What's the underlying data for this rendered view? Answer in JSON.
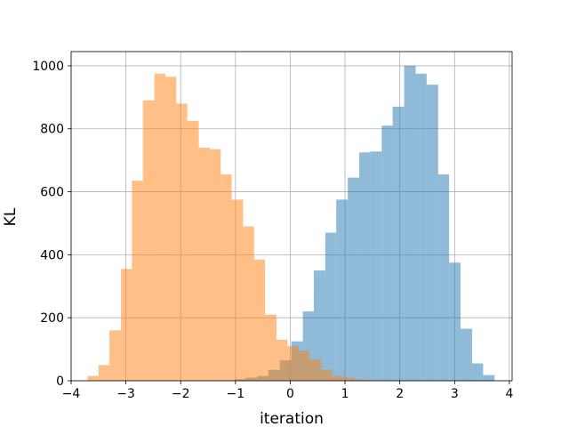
{
  "chart_data": {
    "type": "histogram",
    "title": "",
    "xlabel": "iteration",
    "ylabel": "KL",
    "xlim": [
      -4.0,
      4.05
    ],
    "ylim": [
      0,
      1045
    ],
    "xticks": [
      -4,
      -3,
      -2,
      -1,
      0,
      1,
      2,
      3,
      4
    ],
    "xtick_labels": [
      "−4",
      "−3",
      "−2",
      "−1",
      "0",
      "1",
      "2",
      "3",
      "4"
    ],
    "yticks": [
      0,
      200,
      400,
      600,
      800,
      1000
    ],
    "ytick_labels": [
      "0",
      "200",
      "400",
      "600",
      "800",
      "1000"
    ],
    "grid": true,
    "legend": false,
    "series": [
      {
        "color": "#1f77b4",
        "opacity": 0.5,
        "bin_edges": [
          -1.01,
          -0.81,
          -0.6,
          -0.4,
          -0.19,
          0.02,
          0.23,
          0.43,
          0.64,
          0.84,
          1.05,
          1.26,
          1.46,
          1.67,
          1.87,
          2.08,
          2.29,
          2.49,
          2.7,
          2.9,
          3.11,
          3.32,
          3.52,
          3.73
        ],
        "counts": [
          5,
          10,
          15,
          35,
          65,
          125,
          220,
          350,
          470,
          575,
          645,
          725,
          728,
          810,
          870,
          1000,
          975,
          940,
          655,
          375,
          165,
          55,
          18
        ]
      },
      {
        "color": "#ff7f0e",
        "opacity": 0.5,
        "bin_edges": [
          -3.7,
          -3.5,
          -3.3,
          -3.09,
          -2.89,
          -2.69,
          -2.48,
          -2.28,
          -2.08,
          -1.88,
          -1.67,
          -1.47,
          -1.27,
          -1.07,
          -0.86,
          -0.66,
          -0.46,
          -0.25,
          -0.05,
          0.15,
          0.35,
          0.56,
          0.76,
          0.96,
          1.16,
          1.37,
          1.57
        ],
        "counts": [
          15,
          50,
          160,
          355,
          635,
          890,
          975,
          965,
          880,
          825,
          740,
          735,
          655,
          575,
          490,
          385,
          210,
          130,
          110,
          95,
          68,
          35,
          15,
          10,
          5,
          2
        ]
      }
    ]
  }
}
